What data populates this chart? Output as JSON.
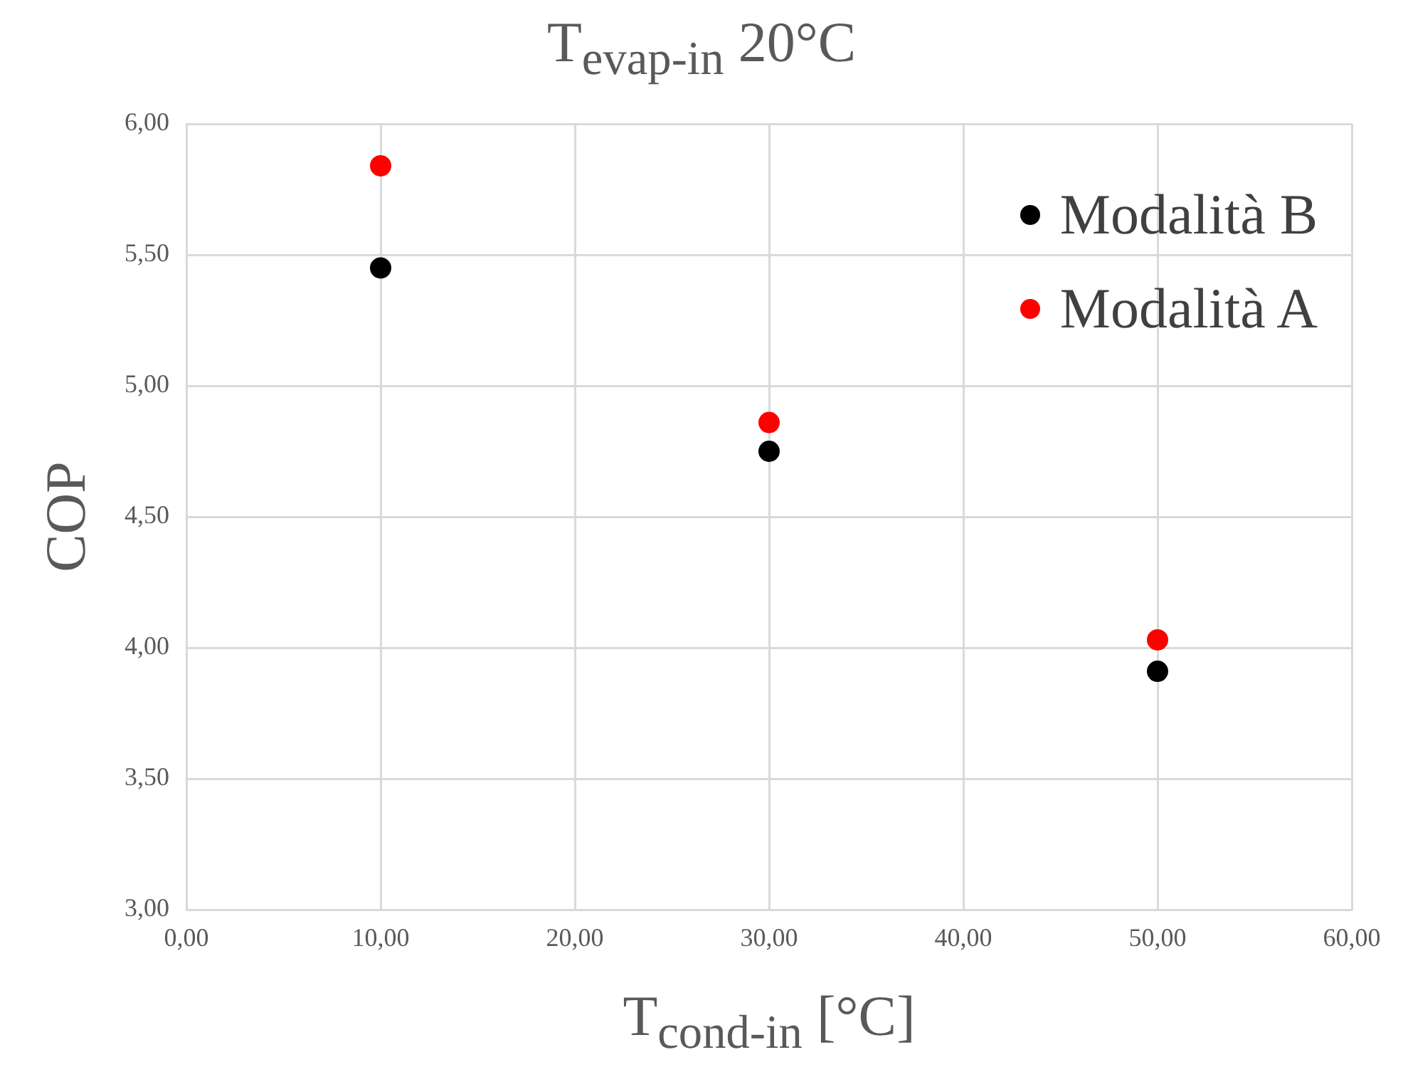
{
  "chart_data": {
    "type": "scatter",
    "title": "T$_{evap-in}$ 20°C",
    "xlabel": "T$_{cond-in}$ [°C]",
    "ylabel": "COP",
    "x": [
      10,
      30,
      50
    ],
    "series": [
      {
        "name": "Modalità B",
        "color": "#000000",
        "values": [
          5.45,
          4.75,
          3.91
        ]
      },
      {
        "name": "Modalità A",
        "color": "#ff0000",
        "values": [
          5.84,
          4.86,
          4.03
        ]
      }
    ],
    "xlim": [
      0,
      60
    ],
    "ylim": [
      3,
      6
    ],
    "xticks": [
      {
        "value": 0,
        "label": "0,00"
      },
      {
        "value": 10,
        "label": "10,00"
      },
      {
        "value": 20,
        "label": "20,00"
      },
      {
        "value": 30,
        "label": "30,00"
      },
      {
        "value": 40,
        "label": "40,00"
      },
      {
        "value": 50,
        "label": "50,00"
      },
      {
        "value": 60,
        "label": "60,00"
      }
    ],
    "yticks": [
      {
        "value": 3,
        "label": "3,00"
      },
      {
        "value": 3.5,
        "label": "3,50"
      },
      {
        "value": 4,
        "label": "4,00"
      },
      {
        "value": 4.5,
        "label": "4,50"
      },
      {
        "value": 5,
        "label": "5,00"
      },
      {
        "value": 5.5,
        "label": "5,50"
      },
      {
        "value": 6,
        "label": "6,00"
      }
    ],
    "grid": true,
    "legend": "top right",
    "marker": "circle"
  }
}
